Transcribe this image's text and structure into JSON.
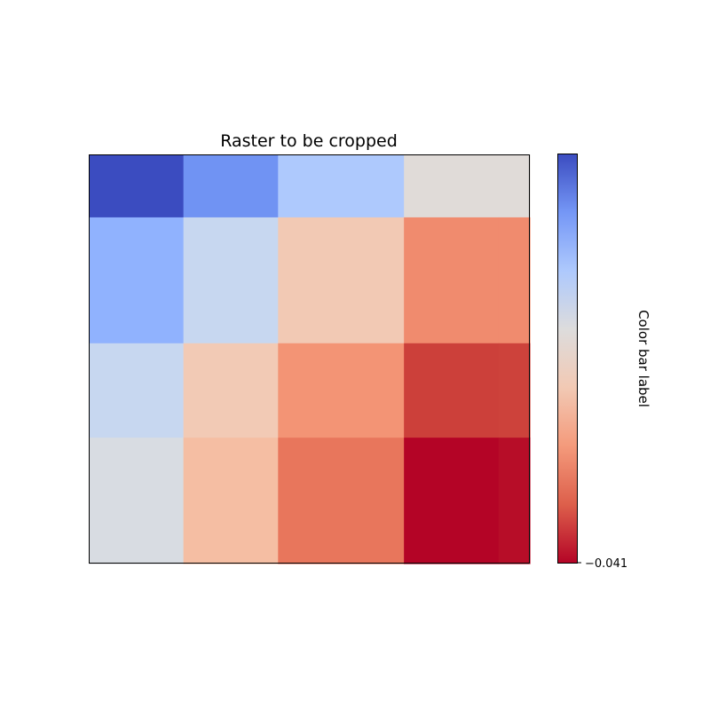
{
  "chart_data": {
    "type": "heatmap",
    "title": "Raster to be cropped",
    "cmap": "coolwarm",
    "column_widths": [
      1.0,
      1.0,
      1.33,
      1.0,
      0.33
    ],
    "row_heights": [
      1.0,
      2.0,
      1.5,
      2.0
    ],
    "values": [
      [
        0.0,
        0.18,
        0.33,
        0.49,
        0.49
      ],
      [
        0.23,
        0.4,
        0.61,
        0.76,
        0.76
      ],
      [
        0.4,
        0.6,
        0.76,
        0.9,
        0.91
      ],
      [
        0.45,
        0.65,
        0.82,
        1.0,
        0.98
      ]
    ],
    "colors": [
      [
        "#3b4cc0",
        "#7093f3",
        "#aec9fd",
        "#e0dbd8",
        "#e0dbd8"
      ],
      [
        "#90b2fe",
        "#c7d7f0",
        "#f2c9b4",
        "#f08b6e",
        "#f08b6e"
      ],
      [
        "#c7d7f0",
        "#f2cab5",
        "#f39475",
        "#cc403a",
        "#cd423b"
      ],
      [
        "#d8dce2",
        "#f5bea3",
        "#e8765c",
        "#b40426",
        "#b70d28"
      ]
    ],
    "colorbar": {
      "label": "Color bar label",
      "tick_labels": [
        "−0.041"
      ],
      "tick_positions": [
        0.0
      ],
      "colors_bottom_to_top": [
        "#b40426",
        "#dd5f4b",
        "#f49a7b",
        "#f2c9b4",
        "#dddcdc",
        "#aec9fd",
        "#7597f6",
        "#3b4cc0"
      ]
    },
    "show_ticks": false,
    "grid": false
  }
}
